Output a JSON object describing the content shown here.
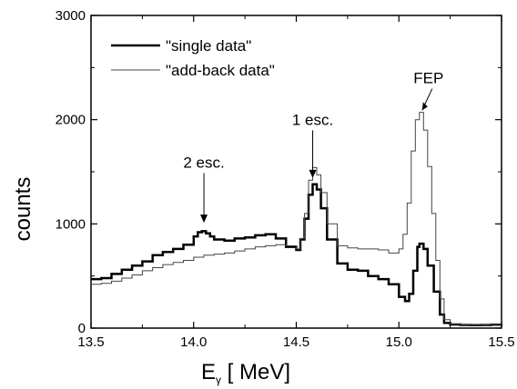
{
  "chart_data": {
    "type": "line",
    "title": "",
    "xlabel_main": "E",
    "xlabel_sub": "γ",
    "xlabel_unit": " [ MeV]",
    "ylabel": "counts",
    "xlim": [
      13.5,
      15.5
    ],
    "ylim": [
      0,
      3000
    ],
    "x_ticks": [
      13.5,
      14.0,
      14.5,
      15.0,
      15.5
    ],
    "x_tick_labels": [
      "13.5",
      "14.0",
      "14.5",
      "15.0",
      "15.5"
    ],
    "y_ticks": [
      0,
      1000,
      2000,
      3000
    ],
    "y_tick_labels": [
      "0",
      "1000",
      "2000",
      "3000"
    ],
    "grid": false,
    "legend_position": "top-left",
    "series": [
      {
        "name": "\"single data\"",
        "color": "#000000",
        "x": [
          13.5,
          13.55,
          13.6,
          13.65,
          13.7,
          13.75,
          13.8,
          13.85,
          13.9,
          13.95,
          14.0,
          14.02,
          14.04,
          14.06,
          14.08,
          14.1,
          14.15,
          14.2,
          14.25,
          14.3,
          14.35,
          14.4,
          14.45,
          14.5,
          14.52,
          14.54,
          14.56,
          14.58,
          14.6,
          14.62,
          14.65,
          14.7,
          14.75,
          14.8,
          14.85,
          14.9,
          14.95,
          15.0,
          15.03,
          15.05,
          15.07,
          15.09,
          15.1,
          15.12,
          15.14,
          15.17,
          15.2,
          15.22,
          15.25,
          15.3,
          15.35,
          15.4,
          15.45,
          15.5
        ],
        "y": [
          470,
          480,
          520,
          560,
          600,
          640,
          700,
          730,
          760,
          800,
          880,
          920,
          930,
          910,
          880,
          850,
          840,
          860,
          870,
          890,
          900,
          860,
          780,
          750,
          850,
          1050,
          1280,
          1380,
          1330,
          1150,
          850,
          620,
          560,
          550,
          500,
          470,
          420,
          300,
          260,
          330,
          550,
          780,
          810,
          760,
          600,
          350,
          130,
          50,
          35,
          30,
          28,
          30,
          32,
          35
        ]
      },
      {
        "name": "\"add-back data\"",
        "color": "#444444",
        "x": [
          13.5,
          13.55,
          13.6,
          13.65,
          13.7,
          13.75,
          13.8,
          13.85,
          13.9,
          13.95,
          14.0,
          14.05,
          14.1,
          14.15,
          14.2,
          14.25,
          14.3,
          14.35,
          14.4,
          14.45,
          14.5,
          14.52,
          14.54,
          14.56,
          14.58,
          14.6,
          14.62,
          14.65,
          14.7,
          14.75,
          14.8,
          14.85,
          14.9,
          14.95,
          15.0,
          15.02,
          15.04,
          15.06,
          15.08,
          15.1,
          15.12,
          15.14,
          15.16,
          15.18,
          15.2,
          15.22,
          15.25,
          15.3,
          15.35,
          15.4,
          15.45,
          15.5
        ],
        "y": [
          420,
          430,
          450,
          480,
          510,
          550,
          580,
          610,
          630,
          650,
          680,
          700,
          710,
          720,
          740,
          760,
          780,
          790,
          800,
          790,
          760,
          860,
          1100,
          1420,
          1540,
          1470,
          1300,
          1000,
          790,
          770,
          760,
          760,
          750,
          720,
          760,
          900,
          1200,
          1700,
          2000,
          2070,
          1900,
          1550,
          1100,
          650,
          280,
          80,
          40,
          30,
          28,
          30,
          32,
          35
        ]
      }
    ],
    "annotations": [
      {
        "text": "2 esc.",
        "x": 14.05,
        "y_text": 1540,
        "y_tip": 1010
      },
      {
        "text": "1 esc.",
        "x": 14.58,
        "y_text": 1950,
        "y_tip": 1440
      },
      {
        "text": "FEP",
        "x": 15.1,
        "y_text": 2350,
        "y_tip": 2090
      }
    ]
  }
}
